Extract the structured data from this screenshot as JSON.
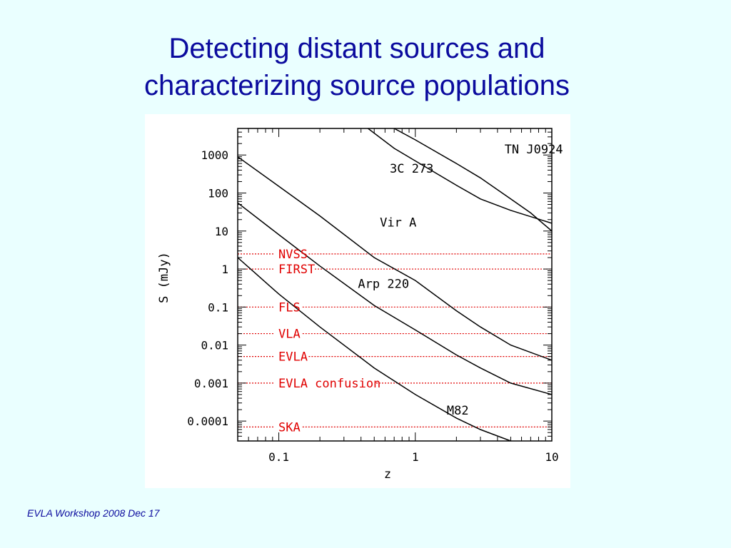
{
  "slide": {
    "title_line1": "Detecting distant sources and",
    "title_line2": "characterizing source populations",
    "footer": "EVLA Workshop 2008 Dec 17"
  },
  "colors": {
    "background": "#eaffff",
    "title": "#0b0b9e",
    "survey_lines": "#e00000",
    "curves": "#000000"
  },
  "chart_data": {
    "type": "line",
    "xlabel": "z",
    "ylabel": "S (mJy)",
    "xscale": "log",
    "yscale": "log",
    "xlim": [
      0.05,
      10
    ],
    "ylim": [
      3e-05,
      5000
    ],
    "x_ticks": [
      {
        "value": 0.1,
        "label": "0.1"
      },
      {
        "value": 1,
        "label": "1"
      },
      {
        "value": 10,
        "label": "10"
      }
    ],
    "y_ticks": [
      {
        "value": 1000,
        "label": "1000"
      },
      {
        "value": 100,
        "label": "100"
      },
      {
        "value": 10,
        "label": "10"
      },
      {
        "value": 1,
        "label": "1"
      },
      {
        "value": 0.1,
        "label": "0.1"
      },
      {
        "value": 0.01,
        "label": "0.01"
      },
      {
        "value": 0.001,
        "label": "0.001"
      },
      {
        "value": 0.0001,
        "label": "0.0001"
      }
    ],
    "series": [
      {
        "name": "TN J0924",
        "x": [
          0.7,
          1,
          2,
          3,
          5,
          7,
          10
        ],
        "y": [
          5000,
          2500,
          600,
          250,
          70,
          30,
          10
        ],
        "label_at": {
          "x": 4.5,
          "y": 1100
        }
      },
      {
        "name": "3C 273",
        "x": [
          0.45,
          0.7,
          1,
          2,
          3,
          5,
          10
        ],
        "y": [
          5000,
          1500,
          700,
          160,
          70,
          35,
          16
        ],
        "label_at": {
          "x": 0.65,
          "y": 340
        }
      },
      {
        "name": "Vir A",
        "x": [
          0.05,
          0.1,
          0.2,
          0.5,
          1,
          2,
          3,
          5,
          10
        ],
        "y": [
          900,
          150,
          25,
          2,
          0.5,
          0.08,
          0.03,
          0.01,
          0.004
        ],
        "label_at": {
          "x": 0.55,
          "y": 13
        }
      },
      {
        "name": "Arp 220",
        "x": [
          0.05,
          0.1,
          0.2,
          0.5,
          1,
          2,
          3,
          5,
          10
        ],
        "y": [
          55,
          8,
          1.2,
          0.11,
          0.025,
          0.0055,
          0.0025,
          0.001,
          0.0005
        ],
        "label_at": {
          "x": 0.38,
          "y": 0.32
        }
      },
      {
        "name": "M82",
        "x": [
          0.05,
          0.1,
          0.2,
          0.5,
          1,
          2,
          3,
          5,
          7
        ],
        "y": [
          2,
          0.22,
          0.03,
          0.0025,
          0.0005,
          0.00012,
          6e-05,
          3e-05,
          2.5e-05
        ],
        "label_at": {
          "x": 1.7,
          "y": 0.00015
        }
      }
    ],
    "survey_limits": [
      {
        "name": "NVSS",
        "y": 2.5
      },
      {
        "name": "FIRST",
        "y": 1
      },
      {
        "name": "FLS",
        "y": 0.1
      },
      {
        "name": "VLA",
        "y": 0.02
      },
      {
        "name": "EVLA",
        "y": 0.005
      },
      {
        "name": "EVLA  confusion",
        "y": 0.001
      },
      {
        "name": "SKA",
        "y": 7e-05
      }
    ]
  }
}
